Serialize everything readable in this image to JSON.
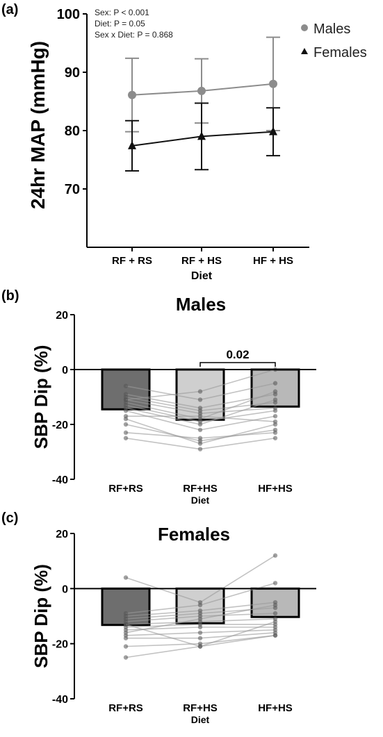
{
  "panels": {
    "a_label": "(a)",
    "b_label": "(b)",
    "c_label": "(c)"
  },
  "stats": {
    "line1": "Sex: P < 0.001",
    "line2": "Diet: P = 0.05",
    "line3": "Sex x Diet: P = 0.868"
  },
  "colors": {
    "males_line": "#8c8c8c",
    "females_line": "#111111",
    "bar_rfrs": "#6e6e6e",
    "bar_rfhs": "#cfcfcf",
    "bar_hfhs": "#b8b8b8",
    "dot": "#555555",
    "pair_line": "#9a9a9a"
  },
  "chart_data": [
    {
      "type": "line",
      "panel": "(a)",
      "title": "",
      "xlabel": "Diet",
      "ylabel": "24hr MAP (mmHg)",
      "categories": [
        "RF + RS",
        "RF + HS",
        "HF + HS"
      ],
      "ylim": [
        60,
        100
      ],
      "yticks": [
        70,
        80,
        90,
        100
      ],
      "legend_position": "top-right",
      "series": [
        {
          "name": "Males",
          "marker": "circle",
          "values": [
            86.1,
            86.8,
            88.0
          ],
          "err": [
            6.3,
            5.5,
            8.0
          ]
        },
        {
          "name": "Females",
          "marker": "triangle",
          "values": [
            77.4,
            79.0,
            79.8
          ],
          "err": [
            4.3,
            5.7,
            4.1
          ]
        }
      ]
    },
    {
      "type": "bar",
      "panel": "(b)",
      "title": "Males",
      "xlabel": "Diet",
      "ylabel": "SBP Dip (%)",
      "categories": [
        "RF+RS",
        "RF+HS",
        "HF+HS"
      ],
      "values": [
        -14.5,
        -18.3,
        -13.5
      ],
      "ylim": [
        -40,
        20
      ],
      "yticks": [
        20,
        0,
        -20,
        -40
      ],
      "annotation": {
        "text": "0.02",
        "from": 1,
        "to": 2
      },
      "individuals": [
        [
          -6,
          -11,
          -5
        ],
        [
          -9,
          -14,
          -9
        ],
        [
          -10,
          -15,
          -12
        ],
        [
          -11,
          -16,
          -14
        ],
        [
          -12,
          -18,
          -8
        ],
        [
          -13,
          -19,
          -15
        ],
        [
          -14,
          -20,
          -11
        ],
        [
          -15,
          -22,
          -17
        ],
        [
          -17,
          -17,
          -19
        ],
        [
          -18,
          -27,
          -20
        ],
        [
          -23,
          -25,
          -23
        ],
        [
          -25,
          -29,
          -25
        ],
        [
          -11,
          -8,
          0
        ],
        [
          -20,
          -26,
          -22
        ]
      ]
    },
    {
      "type": "bar",
      "panel": "(c)",
      "title": "Females",
      "xlabel": "Diet",
      "ylabel": "SBP Dip (%)",
      "categories": [
        "RF+RS",
        "RF+HS",
        "HF+HS"
      ],
      "values": [
        -13.2,
        -12.6,
        -10.3
      ],
      "ylim": [
        -40,
        20
      ],
      "yticks": [
        20,
        0,
        -20,
        -40
      ],
      "individuals": [
        [
          4,
          -5,
          12
        ],
        [
          -9,
          -6,
          2
        ],
        [
          -10,
          -8,
          -5
        ],
        [
          -11,
          -9,
          -7
        ],
        [
          -12,
          -10,
          -9
        ],
        [
          -13,
          -12,
          -11
        ],
        [
          -14,
          -13,
          -13
        ],
        [
          -15,
          -14,
          -14
        ],
        [
          -17,
          -16,
          -15
        ],
        [
          -18,
          -18,
          -16
        ],
        [
          -21,
          -20,
          -17
        ],
        [
          -25,
          -21,
          -17
        ],
        [
          -13,
          -21,
          -12
        ],
        [
          -16,
          -11,
          -6
        ]
      ]
    }
  ]
}
